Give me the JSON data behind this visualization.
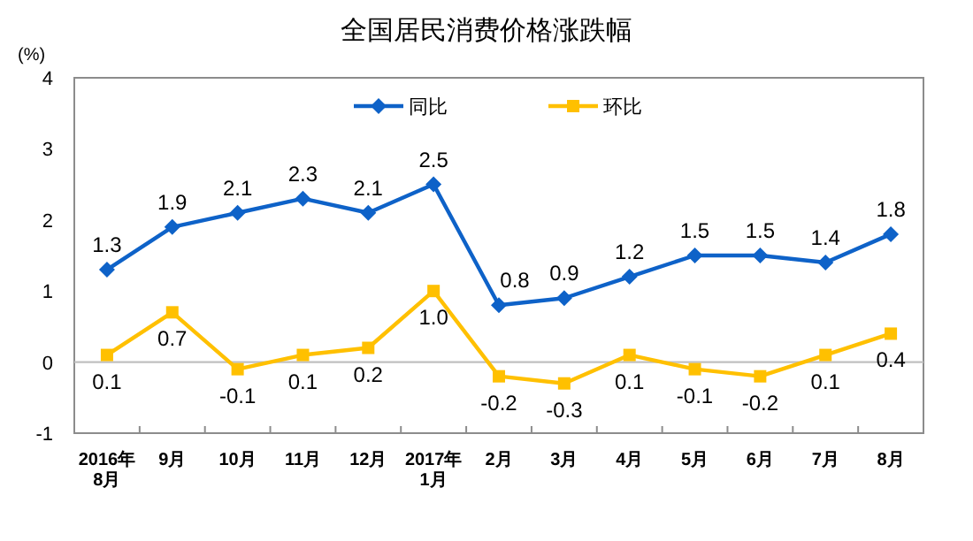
{
  "chart_data": {
    "type": "line",
    "title": "全国居民消费价格涨跌幅",
    "ylabel": "(%)",
    "categories": [
      "2016年\n8月",
      "9月",
      "10月",
      "11月",
      "12月",
      "2017年\n1月",
      "2月",
      "3月",
      "4月",
      "5月",
      "6月",
      "7月",
      "8月"
    ],
    "series": [
      {
        "name": "同比",
        "color": "#0e62c8",
        "marker": "diamond",
        "values": [
          1.3,
          1.9,
          2.1,
          2.3,
          2.1,
          2.5,
          0.8,
          0.9,
          1.2,
          1.5,
          1.5,
          1.4,
          1.8
        ],
        "value_labels": [
          "1.3",
          "1.9",
          "2.1",
          "2.3",
          "2.1",
          "2.5",
          "0.8",
          "0.9",
          "1.2",
          "1.5",
          "1.5",
          "1.4",
          "1.8"
        ]
      },
      {
        "name": "环比",
        "color": "#ffc000",
        "marker": "square",
        "values": [
          0.1,
          0.7,
          -0.1,
          0.1,
          0.2,
          1.0,
          -0.2,
          -0.3,
          0.1,
          -0.1,
          -0.2,
          0.1,
          0.4
        ],
        "value_labels": [
          "0.1",
          "0.7",
          "-0.1",
          "0.1",
          "0.2",
          "1.0",
          "-0.2",
          "-0.3",
          "0.1",
          "-0.1",
          "-0.2",
          "0.1",
          "0.4"
        ]
      }
    ],
    "ylim": [
      -1,
      4
    ],
    "yticks": [
      -1,
      0,
      1,
      2,
      3,
      4
    ],
    "ref_lines": [
      {
        "axis": "y",
        "value": 0,
        "color": "#c0c0c0"
      }
    ],
    "legend": "top",
    "grid": false
  }
}
